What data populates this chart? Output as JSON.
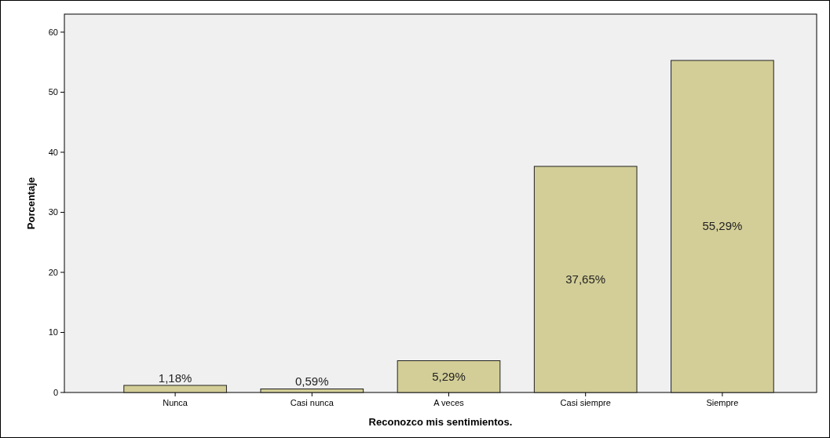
{
  "chart_data": {
    "type": "bar",
    "xlabel": "Reconozco mis sentimientos.",
    "ylabel": "Porcentaje",
    "categories": [
      "Nunca",
      "Casi nunca",
      "A veces",
      "Casi siempre",
      "Siempre"
    ],
    "values": [
      1.18,
      0.59,
      5.29,
      37.65,
      55.29
    ],
    "value_labels": [
      "1,18%",
      "0,59%",
      "5,29%",
      "37,65%",
      "55,29%"
    ],
    "color": "#d3ce97",
    "ylim": [
      0,
      63
    ],
    "yticks": [
      0,
      10,
      20,
      30,
      40,
      50,
      60
    ],
    "grid": false
  }
}
